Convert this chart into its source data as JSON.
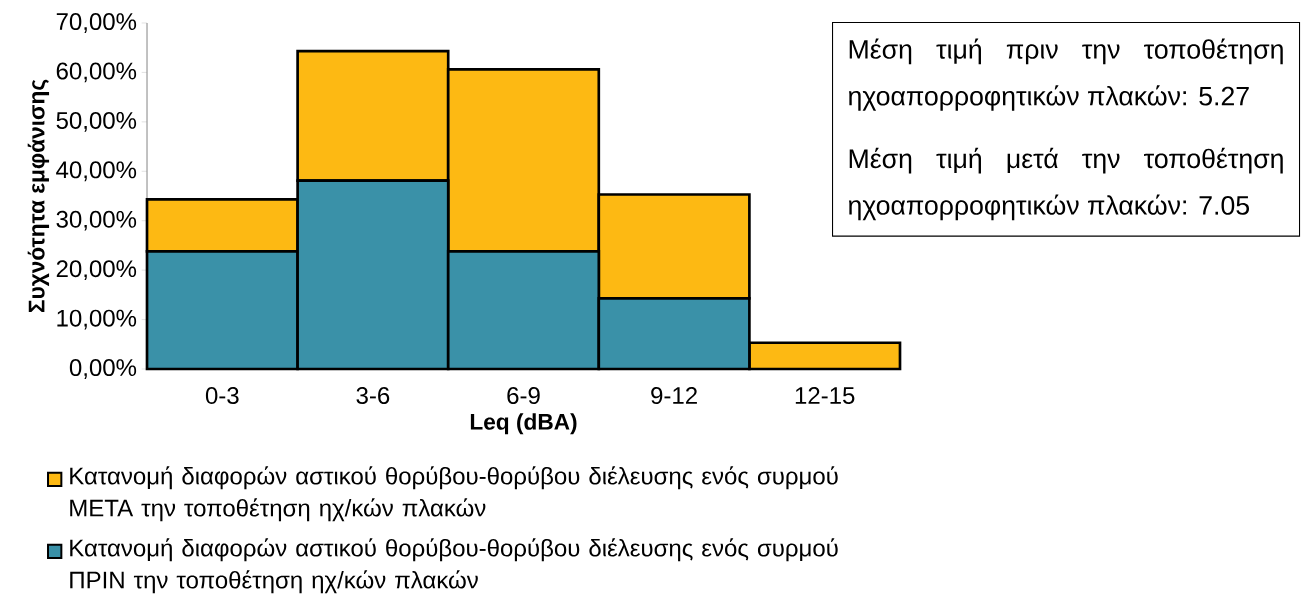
{
  "chart_data": {
    "type": "bar",
    "stacked": true,
    "xlabel": "Leq (dBA)",
    "ylabel": "Συχνότητα εμφάνισης",
    "categories": [
      "0-3",
      "3-6",
      "6-9",
      "9-12",
      "12-15"
    ],
    "series": [
      {
        "name": "Κατανομή διαφορών αστικού θορύβου-θορύβου διέλευσης ενός συρμού ΠΡΙΝ την τοποθέτηση ηχ/κών πλακών",
        "color": "#3a91a8",
        "values": [
          23.8,
          38.1,
          23.8,
          14.3,
          0
        ]
      },
      {
        "name": "Κατανομή διαφορών αστικού θορύβου-θορύβου διέλευσης ενός συρμού ΜΕΤΑ την τοποθέτηση ηχ/κών πλακών",
        "color": "#fdb913",
        "values": [
          10.5,
          26.2,
          36.8,
          21.0,
          5.3
        ]
      }
    ],
    "ylim": [
      0,
      70
    ],
    "yticks": [
      {
        "value": 0,
        "label": "0,00%"
      },
      {
        "value": 10,
        "label": "10,00%"
      },
      {
        "value": 20,
        "label": "20,00%"
      },
      {
        "value": 30,
        "label": "30,00%"
      },
      {
        "value": 40,
        "label": "40,00%"
      },
      {
        "value": 50,
        "label": "50,00%"
      },
      {
        "value": 60,
        "label": "60,00%"
      },
      {
        "value": 70,
        "label": "70,00%"
      }
    ],
    "annotations": [
      "Μέση τιμή πριν την τοποθέτηση ηχοαπορροφητικών πλακών:  5.27",
      "Μέση τιμή μετά την τοποθέτηση ηχοαπορροφητικών πλακών:  7.05"
    ],
    "grid": false,
    "legend": "bottom"
  }
}
